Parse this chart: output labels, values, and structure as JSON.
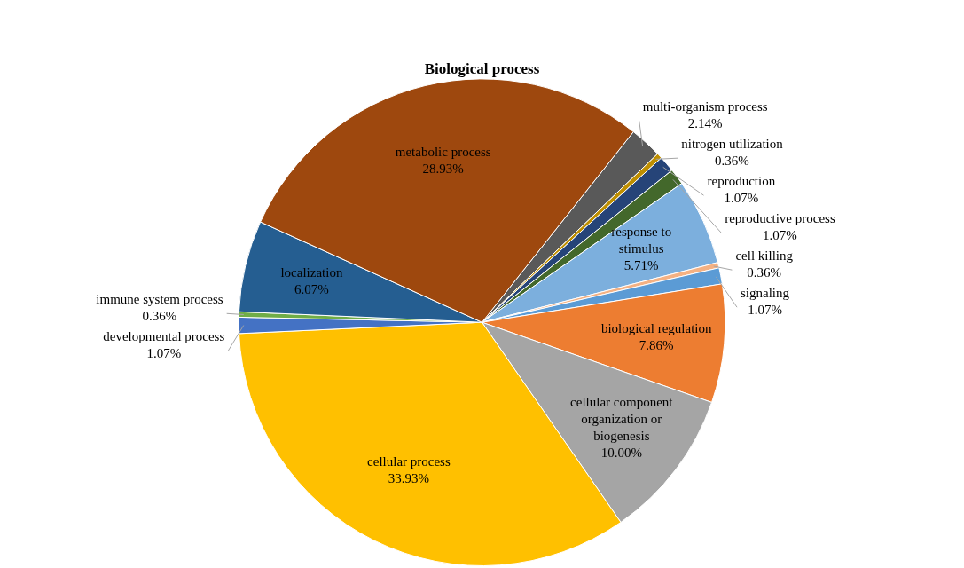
{
  "chart_data": {
    "type": "pie",
    "title": "Biological process",
    "categories": [
      "multi-organism process",
      "nitrogen utilization",
      "reproduction",
      "reproductive process",
      "response to stimulus",
      "cell killing",
      "signaling",
      "biological regulation",
      "cellular component organization or biogenesis",
      "cellular process",
      "developmental process",
      "immune system process",
      "localization",
      "metabolic process"
    ],
    "values": [
      2.14,
      0.36,
      1.07,
      1.07,
      5.71,
      0.36,
      1.07,
      7.86,
      10.0,
      33.93,
      1.07,
      0.36,
      6.07,
      28.93
    ],
    "value_labels": [
      "2.14%",
      "0.36%",
      "1.07%",
      "1.07%",
      "5.71%",
      "0.36%",
      "1.07%",
      "7.86%",
      "10.00%",
      "33.93%",
      "1.07%",
      "0.36%",
      "6.07%",
      "28.93%"
    ],
    "colors": [
      "#595959",
      "#bf8f00",
      "#264478",
      "#43682b",
      "#7cafdd",
      "#f4b183",
      "#5b9bd5",
      "#ed7d31",
      "#a5a5a5",
      "#ffc000",
      "#4472c4",
      "#70ad47",
      "#255e91",
      "#9e480e"
    ],
    "legend": false
  }
}
